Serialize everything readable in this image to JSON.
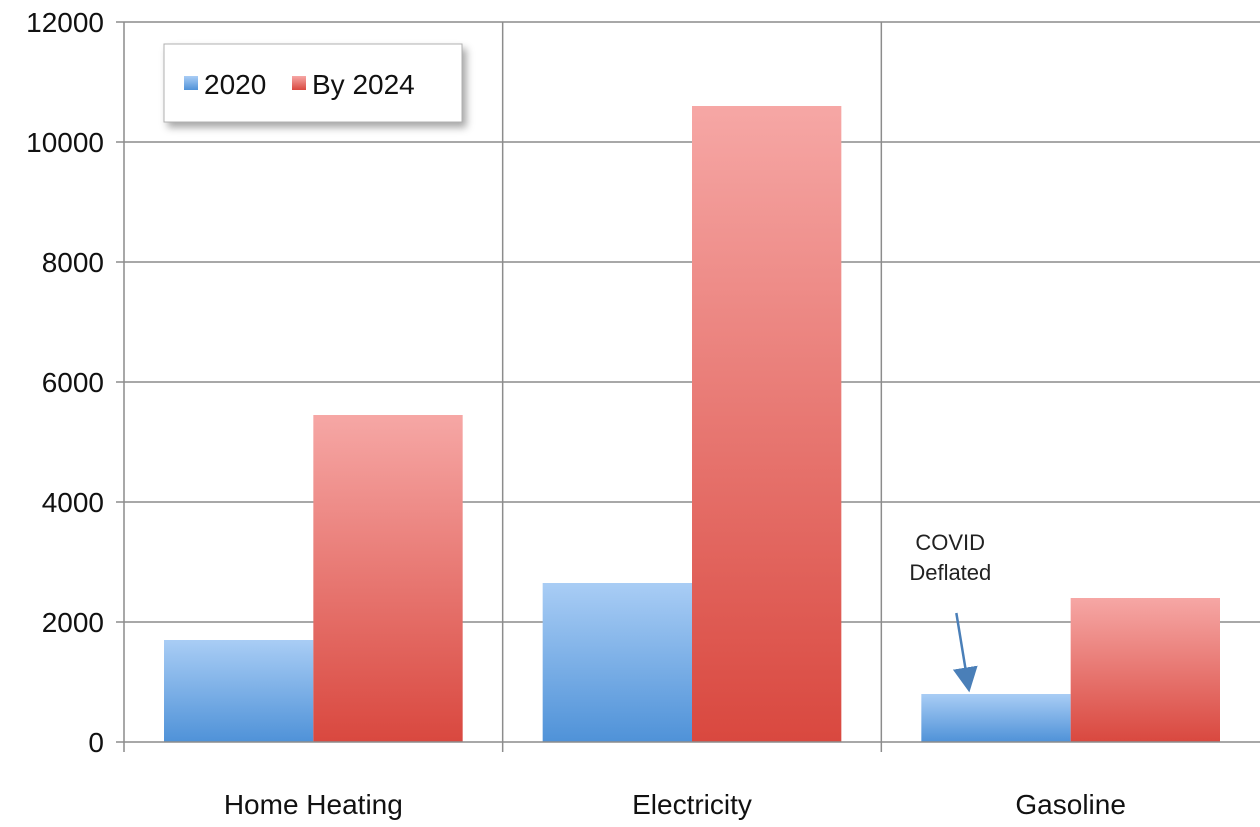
{
  "chart_data": {
    "type": "bar",
    "title": "",
    "xlabel": "",
    "ylabel": "",
    "categories": [
      "Home Heating",
      "Electricity",
      "Gasoline"
    ],
    "series": [
      {
        "name": "2020",
        "values": [
          1700,
          2650,
          800
        ]
      },
      {
        "name": "By 2024",
        "values": [
          5450,
          10600,
          2400
        ]
      }
    ],
    "ylim": [
      0,
      12000
    ],
    "yticks": [
      0,
      2000,
      4000,
      6000,
      8000,
      10000,
      12000
    ],
    "grid": true,
    "legend_position": "top-left",
    "colors": {
      "series_2020_top": "#a9cdf5",
      "series_2020_bottom": "#4f92d8",
      "series_2024_top": "#f6a7a5",
      "series_2024_bottom": "#d9483f"
    },
    "annotations": [
      {
        "lines": [
          "COVID",
          "Deflated"
        ],
        "category": "Gasoline",
        "series": "2020"
      }
    ]
  }
}
